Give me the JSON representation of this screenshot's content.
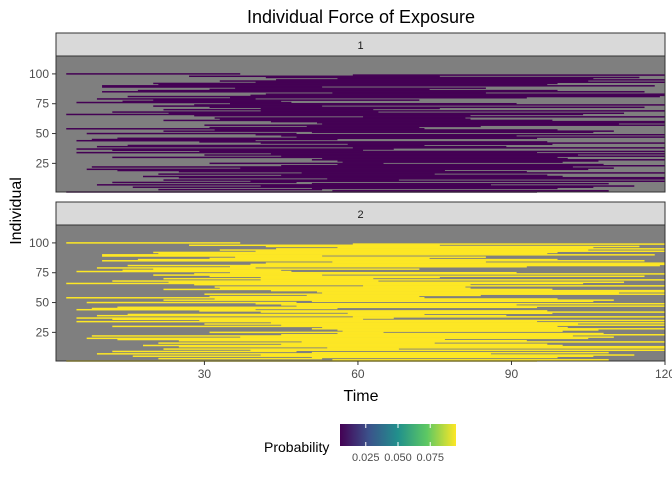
{
  "chart_data": {
    "type": "heatmap",
    "title": "Individual Force of Exposure",
    "xlabel": "Time",
    "ylabel": "Individual",
    "xlim": [
      1,
      120
    ],
    "ylim": [
      1,
      115
    ],
    "x_ticks": [
      30,
      60,
      90,
      120
    ],
    "y_ticks": [
      25,
      50,
      75,
      100
    ],
    "background_color": "#7f7f7f",
    "grid": false,
    "facets": [
      {
        "label": "1",
        "fill_value": 0.005,
        "fill_color": "#440154"
      },
      {
        "label": "2",
        "fill_value": 0.095,
        "fill_color": "#FDE725"
      }
    ],
    "individuals": 100,
    "legend": {
      "title": "Probability",
      "position": "bottom",
      "ticks": [
        0.025,
        0.05,
        0.075
      ],
      "tick_labels": [
        "0.025",
        "0.050",
        "0.075"
      ],
      "range": [
        0.005,
        0.095
      ],
      "palette": [
        "#440154",
        "#3B528B",
        "#21908C",
        "#5DC863",
        "#FDE725"
      ]
    }
  }
}
